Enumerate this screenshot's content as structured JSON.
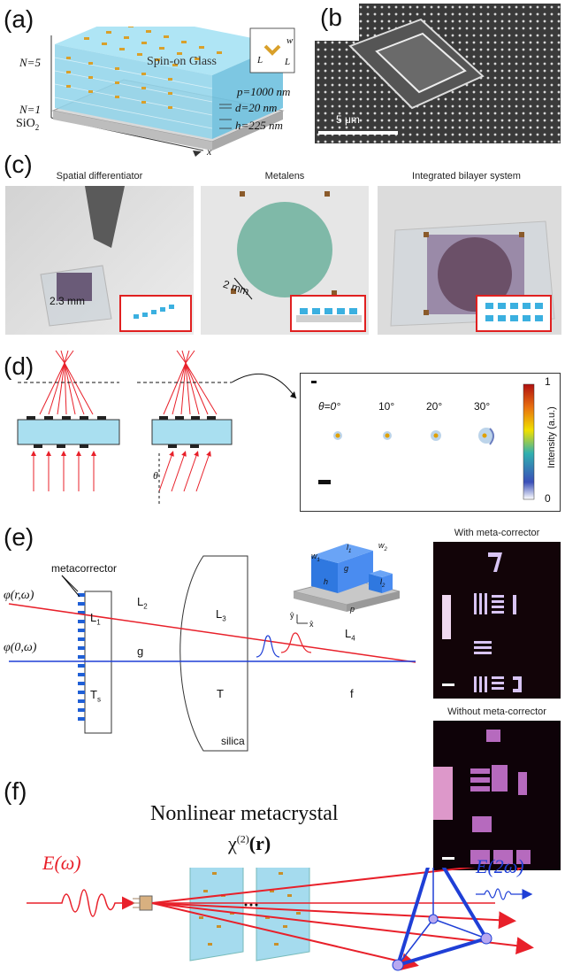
{
  "panels": {
    "a": {
      "letter": "(a)",
      "top_label": "N=5",
      "mid_label": "N=1",
      "sio2": "SiO",
      "sio2_sub": "2",
      "spin_on_glass": "Spin-on Glass",
      "p": "p=1000 nm",
      "d": "d=20 nm",
      "h": "h=225 nm",
      "w": "w",
      "L1": "L",
      "L2": "L",
      "x": "x"
    },
    "b": {
      "letter": "(b",
      "scalebar": "5 μm"
    },
    "c": {
      "letter": "(c)",
      "titles": [
        "Spatial differentiator",
        "Metalens",
        "Integrated bilayer system"
      ],
      "dims": [
        "2.3 mm",
        "2 mm"
      ]
    },
    "d": {
      "letter": "(d)",
      "theta": "θ",
      "angles": [
        "θ=0°",
        "10°",
        "20°",
        "30°"
      ],
      "colorbar_max": "1",
      "colorbar_min": "0",
      "colorbar_label": "Intensity (a.u.)"
    },
    "e": {
      "letter": "(e)",
      "metacorrector": "metacorrector",
      "phi1": "φ(r,ω)",
      "phi2": "φ(0,ω)",
      "L1": "L",
      "L1_sub": "1",
      "L2": "L",
      "L2_sub": "2",
      "L3": "L",
      "L3_sub": "3",
      "L4": "L",
      "L4_sub": "4",
      "g": "g",
      "Ts": "T",
      "Ts_sub": "s",
      "T": "T",
      "f": "f",
      "silica": "silica",
      "with_title": "With meta-corrector",
      "without_title": "Without meta-corrector",
      "seven": "7",
      "inset": {
        "w1": "w",
        "w1_sub": "1",
        "w2": "w",
        "w2_sub": "2",
        "l1": "l",
        "l1_sub": "1",
        "l2": "l",
        "l2_sub": "2",
        "g": "g",
        "h": "h",
        "p": "p",
        "y": "ŷ",
        "x": "x̂"
      }
    },
    "f": {
      "letter": "(f)",
      "title": "Nonlinear metacrystal",
      "chi": "χ",
      "chi_sup": "(2)",
      "chi_arg": "(r)",
      "e_in": "E(ω)",
      "e_out": "E(2ω)"
    }
  },
  "colors": {
    "glass": "#8fd3ea",
    "red": "#e8202a",
    "blue": "#1f3fd6",
    "pink": "#e86c8a",
    "metaBlue": "#34a8d8"
  }
}
